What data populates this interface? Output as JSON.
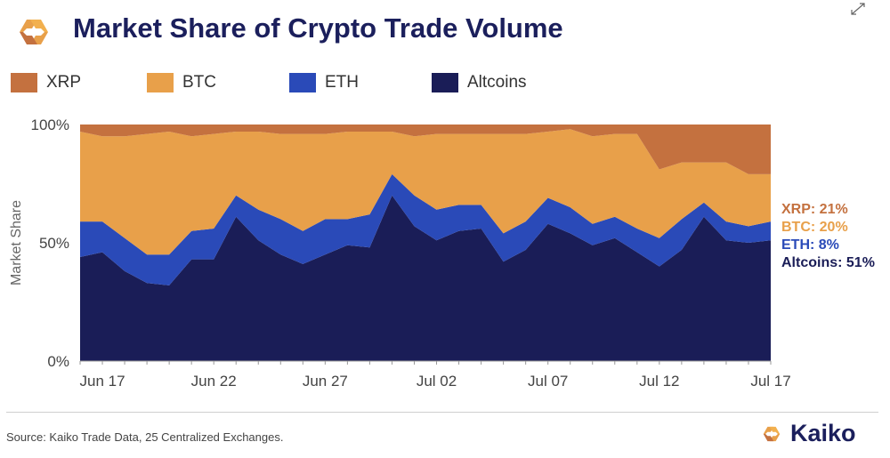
{
  "header": {
    "title": "Market Share of Crypto Trade Volume",
    "logo_icon": "kaiko-logo-icon",
    "expand_icon": "expand-arrows-icon"
  },
  "legend": [
    {
      "label": "XRP",
      "color": "#c4713f"
    },
    {
      "label": "BTC",
      "color": "#e8a04a"
    },
    {
      "label": "ETH",
      "color": "#2a4ab8"
    },
    {
      "label": "Altcoins",
      "color": "#1a1d57"
    }
  ],
  "footer": {
    "source": "Source: Kaiko Trade Data, 25 Centralized Exchanges.",
    "brand": "Kaiko"
  },
  "chart_data": {
    "type": "area",
    "stacked": true,
    "title": "Market Share of Crypto Trade Volume",
    "ylabel": "Market Share",
    "xlabel": "",
    "ylim": [
      0,
      100
    ],
    "y_ticks": [
      "0%",
      "50%",
      "100%"
    ],
    "x_ticks": [
      "Jun 17",
      "Jun 22",
      "Jun 27",
      "Jul 02",
      "Jul 07",
      "Jul 12",
      "Jul 17"
    ],
    "x": [
      "Jun 16",
      "Jun 17",
      "Jun 18",
      "Jun 19",
      "Jun 20",
      "Jun 21",
      "Jun 22",
      "Jun 23",
      "Jun 24",
      "Jun 25",
      "Jun 26",
      "Jun 27",
      "Jun 28",
      "Jun 29",
      "Jun 30",
      "Jul 01",
      "Jul 02",
      "Jul 03",
      "Jul 04",
      "Jul 05",
      "Jul 06",
      "Jul 07",
      "Jul 08",
      "Jul 09",
      "Jul 10",
      "Jul 11",
      "Jul 12",
      "Jul 13",
      "Jul 14",
      "Jul 15",
      "Jul 16",
      "Jul 17"
    ],
    "series": [
      {
        "name": "Altcoins",
        "color": "#1a1d57",
        "values": [
          44,
          46,
          38,
          33,
          32,
          43,
          43,
          61,
          51,
          45,
          41,
          45,
          49,
          48,
          70,
          57,
          51,
          55,
          56,
          42,
          47,
          58,
          54,
          49,
          52,
          46,
          40,
          47,
          61,
          51,
          50,
          51
        ]
      },
      {
        "name": "ETH",
        "color": "#2a4ab8",
        "values": [
          15,
          13,
          14,
          12,
          13,
          12,
          13,
          9,
          13,
          15,
          14,
          15,
          11,
          14,
          9,
          13,
          13,
          11,
          10,
          12,
          12,
          11,
          11,
          9,
          9,
          10,
          12,
          13,
          6,
          8,
          7,
          8
        ]
      },
      {
        "name": "BTC",
        "color": "#e8a04a",
        "values": [
          38,
          36,
          43,
          51,
          52,
          40,
          40,
          27,
          33,
          36,
          41,
          36,
          37,
          35,
          18,
          25,
          32,
          30,
          30,
          42,
          37,
          28,
          33,
          37,
          35,
          40,
          29,
          24,
          17,
          25,
          22,
          20
        ]
      },
      {
        "name": "XRP",
        "color": "#c4713f",
        "values": [
          3,
          5,
          5,
          4,
          3,
          5,
          4,
          3,
          3,
          4,
          4,
          4,
          3,
          3,
          3,
          5,
          4,
          4,
          4,
          4,
          4,
          3,
          2,
          5,
          4,
          4,
          19,
          16,
          16,
          16,
          21,
          21
        ]
      }
    ],
    "end_labels": [
      {
        "text": "XRP: 21%",
        "color": "#c4713f"
      },
      {
        "text": "BTC: 20%",
        "color": "#e8a04a"
      },
      {
        "text": "ETH: 8%",
        "color": "#2a4ab8"
      },
      {
        "text": "Altcoins: 51%",
        "color": "#1a1d57"
      }
    ],
    "grid": false,
    "legend_position": "top"
  }
}
